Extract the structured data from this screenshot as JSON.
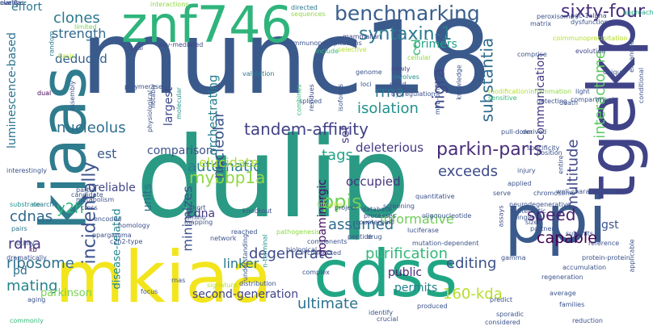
{
  "words": [
    {
      "text": "munc18",
      "color": "#3b5a8c"
    },
    {
      "text": "dulip",
      "color": "#2a9a84"
    },
    {
      "text": "ppi",
      "color": "#3b5a8c"
    },
    {
      "text": "mkiaa",
      "color": "#f2e51d"
    },
    {
      "text": "cdss",
      "color": "#21a685"
    },
    {
      "text": "tgekp",
      "color": "#404387"
    },
    {
      "text": "kiaas",
      "color": "#2f7c8e"
    },
    {
      "text": "znf746",
      "color": "#2fb47c"
    },
    {
      "text": "benchmarking",
      "color": "#3a5e8c"
    },
    {
      "text": "sixty-four",
      "color": "#472d7b"
    },
    {
      "text": "syntaxin-1",
      "color": "#2a788e"
    },
    {
      "text": "parkin-paris",
      "color": "#472c7a"
    },
    {
      "text": "tandem-affinity",
      "color": "#424186"
    },
    {
      "text": "mybbp1a",
      "color": "#8fd744"
    },
    {
      "text": "nucleolus",
      "color": "#2e6e8e"
    },
    {
      "text": "clones",
      "color": "#2a788e"
    },
    {
      "text": "strength",
      "color": "#31688e"
    },
    {
      "text": "y2h",
      "color": "#2fb47c"
    },
    {
      "text": "ppis",
      "color": "#73d056"
    },
    {
      "text": "incidentally",
      "color": "#3b528b"
    },
    {
      "text": "automatic",
      "color": "#287d8e"
    },
    {
      "text": "exceeds",
      "color": "#3e4a89"
    },
    {
      "text": "speed",
      "color": "#481f70"
    },
    {
      "text": "capable",
      "color": "#440154"
    },
    {
      "text": "editing",
      "color": "#3b528b"
    },
    {
      "text": "ultimate",
      "color": "#2c728e"
    },
    {
      "text": "degenerate",
      "color": "#3e4a89"
    },
    {
      "text": "purification",
      "color": "#35b779"
    },
    {
      "text": "substantia",
      "color": "#2f6c8e"
    },
    {
      "text": "nigra",
      "color": "#3f4788"
    },
    {
      "text": "multitude",
      "color": "#3f4889"
    },
    {
      "text": "interactome",
      "color": "#5ec962"
    },
    {
      "text": "nucleolar",
      "color": "#3b528b"
    },
    {
      "text": "cdnas",
      "color": "#31688e"
    },
    {
      "text": "rdna",
      "color": "#453781"
    },
    {
      "text": "mating",
      "color": "#25848e"
    },
    {
      "text": "ribosome",
      "color": "#2d708e"
    },
    {
      "text": "minimizes",
      "color": "#3b528b"
    },
    {
      "text": "linker",
      "color": "#2a788e"
    },
    {
      "text": "160-kda",
      "color": "#b5de2b"
    },
    {
      "text": "assumed",
      "color": "#2f6c8e"
    },
    {
      "text": "rrna",
      "color": "#2a788e"
    },
    {
      "text": "isolation",
      "color": "#21918c"
    },
    {
      "text": "luminescence-based",
      "color": "#2c738e"
    },
    {
      "text": "effort",
      "color": "#2a788e"
    },
    {
      "text": "deduced",
      "color": "#34608d"
    },
    {
      "text": "comparison",
      "color": "#3b528b"
    },
    {
      "text": "reliable",
      "color": "#404688"
    },
    {
      "text": "tags",
      "color": "#20a386"
    },
    {
      "text": "occupied",
      "color": "#46337f"
    },
    {
      "text": "deleterious",
      "color": "#443a83"
    },
    {
      "text": "informative",
      "color": "#6ece58"
    },
    {
      "text": "dopaminergic",
      "color": "#471063"
    },
    {
      "text": "cdna",
      "color": "#453781"
    },
    {
      "text": "public",
      "color": "#482475"
    },
    {
      "text": "pd",
      "color": "#2c728e"
    },
    {
      "text": "second-generation",
      "color": "#414487"
    },
    {
      "text": "parkinson",
      "color": "#7ad151"
    },
    {
      "text": "permits",
      "color": "#26828e"
    },
    {
      "text": "orchestrating",
      "color": "#277f8e"
    },
    {
      "text": "largest",
      "color": "#3e4989"
    },
    {
      "text": "primers",
      "color": "#1fa188"
    },
    {
      "text": "elucidate",
      "color": "#aadc32"
    },
    {
      "text": "communication",
      "color": "#443983"
    },
    {
      "text": "est",
      "color": "#38598c"
    },
    {
      "text": "units",
      "color": "#2e6f8e"
    },
    {
      "text": "set",
      "color": "#443983"
    },
    {
      "text": "gst",
      "color": "#3b528b"
    },
    {
      "text": "disease-related",
      "color": "#23898e"
    },
    {
      "text": "ccl",
      "color": "#3dbc74"
    },
    {
      "text": "interactions",
      "color": "#8fd744"
    },
    {
      "text": "directed",
      "color": "#2a788e"
    },
    {
      "text": "sequences",
      "color": "#8fd744"
    },
    {
      "text": "peroxisome",
      "color": "#3b528b"
    },
    {
      "text": "pgc-1alpha",
      "color": "#3b528b"
    },
    {
      "text": "dysfunction",
      "color": "#3b528b"
    },
    {
      "text": "coimmunoprecipitation",
      "color": "#b5de2b"
    },
    {
      "text": "approach",
      "color": "#22a884"
    },
    {
      "text": "evolution",
      "color": "#404688"
    },
    {
      "text": "matrix",
      "color": "#3b528b"
    },
    {
      "text": "limited",
      "color": "#7ad151"
    },
    {
      "text": "aav-mediated",
      "color": "#404688"
    },
    {
      "text": "co-immunoprecipitations",
      "color": "#3b528b"
    },
    {
      "text": "mammalian",
      "color": "#404688"
    },
    {
      "text": "selective",
      "color": "#b5de2b"
    },
    {
      "text": "include",
      "color": "#35b779"
    },
    {
      "text": "cellular",
      "color": "#8fd744"
    },
    {
      "text": "newly",
      "color": "#404688"
    },
    {
      "text": "involves",
      "color": "#21918c"
    },
    {
      "text": "rapid",
      "color": "#3b528b"
    },
    {
      "text": "genome",
      "color": "#3b528b"
    },
    {
      "text": "loci",
      "color": "#3b528b"
    },
    {
      "text": "dysregulation",
      "color": "#3b528b"
    },
    {
      "text": "isoforms",
      "color": "#3b528b"
    },
    {
      "text": "spliced",
      "color": "#3b528b"
    },
    {
      "text": "combines",
      "color": "#35b779"
    },
    {
      "text": "residues",
      "color": "#404688"
    },
    {
      "text": "validation",
      "color": "#2a788e"
    },
    {
      "text": "molecular",
      "color": "#21918c"
    },
    {
      "text": "notably",
      "color": "#3b528b"
    },
    {
      "text": "physiological",
      "color": "#3b528b"
    },
    {
      "text": "polymerase",
      "color": "#3b528b"
    },
    {
      "text": "goal",
      "color": "#404688"
    },
    {
      "text": "basis",
      "color": "#b5de2b"
    },
    {
      "text": "dual",
      "color": "#440154"
    },
    {
      "text": "random",
      "color": "#2a788e"
    },
    {
      "text": "assembly",
      "color": "#3b528b"
    },
    {
      "text": "interestingly",
      "color": "#3b528b"
    },
    {
      "text": "partial",
      "color": "#3b528b"
    },
    {
      "text": "substrate",
      "color": "#21918c"
    },
    {
      "text": "search",
      "color": "#2a788e"
    },
    {
      "text": "pairs",
      "color": "#2a788e"
    },
    {
      "text": "utility",
      "color": "#3b528b"
    },
    {
      "text": "kb",
      "color": "#440154"
    },
    {
      "text": "dramatically",
      "color": "#3b528b"
    },
    {
      "text": "candidate",
      "color": "#3b528b"
    },
    {
      "text": "aging",
      "color": "#3b528b"
    },
    {
      "text": "commonly",
      "color": "#35b779"
    },
    {
      "text": "metabolism",
      "color": "#3b528b"
    },
    {
      "text": "cross",
      "color": "#3b528b"
    },
    {
      "text": "encoded",
      "color": "#3b528b"
    },
    {
      "text": "ppargamma",
      "color": "#3b528b"
    },
    {
      "text": "rnas",
      "color": "#3b528b"
    },
    {
      "text": "focus",
      "color": "#3b528b"
    },
    {
      "text": "signature",
      "color": "#b5de2b"
    },
    {
      "text": "short",
      "color": "#3b528b"
    },
    {
      "text": "amino",
      "color": "#3b528b"
    },
    {
      "text": "mapping",
      "color": "#3b528b"
    },
    {
      "text": "knockout",
      "color": "#3b528b"
    },
    {
      "text": "reached",
      "color": "#3b528b"
    },
    {
      "text": "network",
      "color": "#3b528b"
    },
    {
      "text": "c2h2-type",
      "color": "#3b528b"
    },
    {
      "text": "homology",
      "color": "#3b528b"
    },
    {
      "text": "distribution",
      "color": "#3b528b"
    },
    {
      "text": "understanding",
      "color": "#3b528b"
    },
    {
      "text": "n-terminal",
      "color": "#21918c"
    },
    {
      "text": "pathogenesis",
      "color": "#8fd744"
    },
    {
      "text": "biological",
      "color": "#3b528b"
    },
    {
      "text": "components",
      "color": "#3b528b"
    },
    {
      "text": "conducted",
      "color": "#3b528b"
    },
    {
      "text": "libraries",
      "color": "#b5de2b"
    },
    {
      "text": "project",
      "color": "#3b528b"
    },
    {
      "text": "database",
      "color": "#3b528b"
    },
    {
      "text": "processes",
      "color": "#3b528b"
    },
    {
      "text": "counterpart",
      "color": "#3b528b"
    },
    {
      "text": "peptide",
      "color": "#3b528b"
    },
    {
      "text": "drug",
      "color": "#3b528b"
    },
    {
      "text": "quantitative",
      "color": "#3b528b"
    },
    {
      "text": "oligonucleotide",
      "color": "#3b528b"
    },
    {
      "text": "screening",
      "color": "#3b528b"
    },
    {
      "text": "luciferase",
      "color": "#3b528b"
    },
    {
      "text": "mutation-dependent",
      "color": "#3b528b"
    },
    {
      "text": "complex",
      "color": "#3b528b"
    },
    {
      "text": "identify",
      "color": "#3b528b"
    },
    {
      "text": "crucial",
      "color": "#3b528b"
    },
    {
      "text": "produced",
      "color": "#3b528b"
    },
    {
      "text": "myb-binding",
      "color": "#3b528b"
    },
    {
      "text": "knowledge",
      "color": "#3b528b"
    },
    {
      "text": "modification",
      "color": "#b5de2b"
    },
    {
      "text": "sensitive",
      "color": "#35b779"
    },
    {
      "text": "inflammation",
      "color": "#8fd744"
    },
    {
      "text": "detecting",
      "color": "#3b528b"
    },
    {
      "text": "death",
      "color": "#3b528b"
    },
    {
      "text": "pull-down",
      "color": "#3b528b"
    },
    {
      "text": "derived",
      "color": "#3b528b"
    },
    {
      "text": "specificity",
      "color": "#3b528b"
    },
    {
      "text": "position",
      "color": "#3b528b"
    },
    {
      "text": "entire",
      "color": "#3b528b"
    },
    {
      "text": "injury",
      "color": "#3b528b"
    },
    {
      "text": "applied",
      "color": "#3b528b"
    },
    {
      "text": "serve",
      "color": "#3b528b"
    },
    {
      "text": "chromosome",
      "color": "#3b528b"
    },
    {
      "text": "well-characterized",
      "color": "#3b528b"
    },
    {
      "text": "neurodegenerative",
      "color": "#3b528b"
    },
    {
      "text": "assays",
      "color": "#3b528b"
    },
    {
      "text": "systematic",
      "color": "#3b528b"
    },
    {
      "text": "single",
      "color": "#3b528b"
    },
    {
      "text": "size",
      "color": "#3b528b"
    },
    {
      "text": "partners",
      "color": "#3b528b"
    },
    {
      "text": "subunits",
      "color": "#3b528b"
    },
    {
      "text": "reference",
      "color": "#3b528b"
    },
    {
      "text": "protein-protein",
      "color": "#3b528b"
    },
    {
      "text": "gamma",
      "color": "#3b528b"
    },
    {
      "text": "accumulation",
      "color": "#3b528b"
    },
    {
      "text": "regeneration",
      "color": "#3b528b"
    },
    {
      "text": "average",
      "color": "#3b528b"
    },
    {
      "text": "predict",
      "color": "#3b528b"
    },
    {
      "text": "families",
      "color": "#3b528b"
    },
    {
      "text": "sporadic",
      "color": "#3b528b"
    },
    {
      "text": "considered",
      "color": "#3b528b"
    },
    {
      "text": "reduction",
      "color": "#3b528b"
    },
    {
      "text": "applicable",
      "color": "#3b528b"
    },
    {
      "text": "conditional",
      "color": "#3b528b"
    },
    {
      "text": "expanded",
      "color": "#3b528b"
    },
    {
      "text": "unique",
      "color": "#3b528b"
    },
    {
      "text": "light",
      "color": "#3b528b"
    },
    {
      "text": "compartment",
      "color": "#3b528b"
    },
    {
      "text": "comprise",
      "color": "#3b528b"
    },
    {
      "text": "clarify",
      "color": "#3b528b"
    },
    {
      "text": "event",
      "color": "#3b528b"
    },
    {
      "text": "nuclear",
      "color": "#3b528b"
    }
  ]
}
